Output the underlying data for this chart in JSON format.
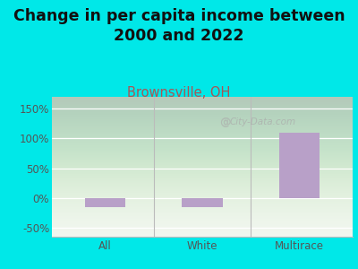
{
  "title": "Change in per capita income between\n2000 and 2022",
  "subtitle": "Brownsville, OH",
  "categories": [
    "All",
    "White",
    "Multirace"
  ],
  "values": [
    -15,
    -15,
    110
  ],
  "bar_color": "#b8a0c8",
  "background_outer": "#00e8e8",
  "background_plot_top": "#f0f5ee",
  "background_plot_bottom": "#d8eecc",
  "title_fontsize": 12.5,
  "subtitle_fontsize": 10.5,
  "subtitle_color": "#aa5555",
  "tick_label_color": "#555555",
  "ylabel_ticks": [
    "-50%",
    "0%",
    "50%",
    "100%",
    "150%"
  ],
  "ytick_values": [
    -50,
    0,
    50,
    100,
    150
  ],
  "ylim": [
    -65,
    170
  ],
  "xlim": [
    -0.55,
    2.55
  ],
  "watermark": "City-Data.com",
  "bar_width": 0.42
}
